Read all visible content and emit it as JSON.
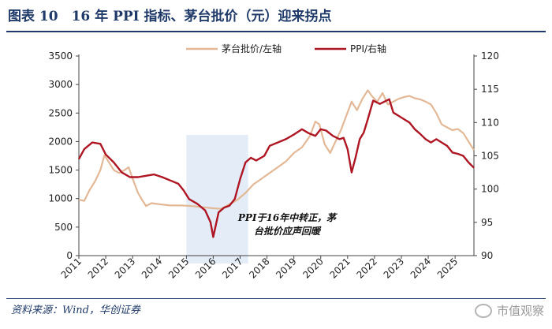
{
  "header": {
    "title": "图表 10　16 年 PPI 指标、茅台批价（元）迎来拐点"
  },
  "footer": {
    "source": "资料来源：Wind，华创证券",
    "watermark": "市值观察"
  },
  "annotation": {
    "line1": "PPI于16年中转正，茅",
    "line2": "台批价应声回暖"
  },
  "colors": {
    "moutai": "#e3b896",
    "ppi": "#ae1623",
    "highlight": "#dbe6f4",
    "axis": "#444444",
    "title": "#1f3a68"
  },
  "chart_data": {
    "type": "line",
    "title": "16 年 PPI 指标、茅台批价（元）迎来拐点",
    "xlabel": "",
    "x_ticks": [
      "2011",
      "2012",
      "2013",
      "2014",
      "2015",
      "2016",
      "2017",
      "2018",
      "2019",
      "2020",
      "2021",
      "2022",
      "2023",
      "2024",
      "2025"
    ],
    "xlim": [
      2011.0,
      2025.7
    ],
    "left_axis": {
      "label": "茅台批价/左轴",
      "ylim": [
        0,
        3500
      ],
      "ticks": [
        0,
        500,
        1000,
        1500,
        2000,
        2500,
        3000,
        3500
      ]
    },
    "right_axis": {
      "label": "PPI/右轴",
      "ylim": [
        90,
        120
      ],
      "ticks": [
        90,
        95,
        100,
        105,
        110,
        115,
        120
      ]
    },
    "highlight_range": [
      2015.0,
      2017.3
    ],
    "legend_position": "top",
    "series": [
      {
        "name": "茅台批价/左轴",
        "axis": "left",
        "points": [
          [
            2011.0,
            980
          ],
          [
            2011.2,
            960
          ],
          [
            2011.4,
            1150
          ],
          [
            2011.6,
            1300
          ],
          [
            2011.8,
            1500
          ],
          [
            2011.95,
            1760
          ],
          [
            2012.1,
            1650
          ],
          [
            2012.3,
            1500
          ],
          [
            2012.5,
            1450
          ],
          [
            2012.7,
            1500
          ],
          [
            2012.85,
            1550
          ],
          [
            2013.0,
            1350
          ],
          [
            2013.2,
            1100
          ],
          [
            2013.35,
            980
          ],
          [
            2013.5,
            870
          ],
          [
            2013.7,
            920
          ],
          [
            2014.0,
            900
          ],
          [
            2014.4,
            880
          ],
          [
            2014.8,
            880
          ],
          [
            2015.2,
            870
          ],
          [
            2015.6,
            850
          ],
          [
            2016.0,
            830
          ],
          [
            2016.3,
            820
          ],
          [
            2016.6,
            900
          ],
          [
            2016.9,
            980
          ],
          [
            2017.2,
            1100
          ],
          [
            2017.5,
            1250
          ],
          [
            2017.8,
            1350
          ],
          [
            2018.1,
            1450
          ],
          [
            2018.4,
            1550
          ],
          [
            2018.7,
            1650
          ],
          [
            2019.0,
            1800
          ],
          [
            2019.3,
            1900
          ],
          [
            2019.6,
            2100
          ],
          [
            2019.8,
            2350
          ],
          [
            2019.95,
            2300
          ],
          [
            2020.15,
            1950
          ],
          [
            2020.35,
            1800
          ],
          [
            2020.55,
            2000
          ],
          [
            2020.75,
            2200
          ],
          [
            2020.95,
            2450
          ],
          [
            2021.15,
            2700
          ],
          [
            2021.35,
            2550
          ],
          [
            2021.55,
            2750
          ],
          [
            2021.75,
            2900
          ],
          [
            2021.9,
            2800
          ],
          [
            2022.1,
            2700
          ],
          [
            2022.3,
            2850
          ],
          [
            2022.5,
            2650
          ],
          [
            2022.7,
            2700
          ],
          [
            2022.9,
            2750
          ],
          [
            2023.1,
            2780
          ],
          [
            2023.3,
            2800
          ],
          [
            2023.5,
            2760
          ],
          [
            2023.7,
            2740
          ],
          [
            2023.9,
            2700
          ],
          [
            2024.1,
            2650
          ],
          [
            2024.3,
            2500
          ],
          [
            2024.5,
            2300
          ],
          [
            2024.7,
            2250
          ],
          [
            2024.9,
            2200
          ],
          [
            2025.1,
            2220
          ],
          [
            2025.3,
            2150
          ],
          [
            2025.5,
            2000
          ],
          [
            2025.7,
            1850
          ]
        ]
      },
      {
        "name": "PPI/右轴",
        "axis": "right",
        "points": [
          [
            2011.0,
            104.5
          ],
          [
            2011.2,
            106.0
          ],
          [
            2011.5,
            107.0
          ],
          [
            2011.8,
            106.8
          ],
          [
            2012.0,
            105.2
          ],
          [
            2012.3,
            104.0
          ],
          [
            2012.6,
            102.5
          ],
          [
            2012.9,
            101.8
          ],
          [
            2013.2,
            101.8
          ],
          [
            2013.5,
            102.0
          ],
          [
            2013.8,
            102.2
          ],
          [
            2014.1,
            101.8
          ],
          [
            2014.4,
            101.3
          ],
          [
            2014.7,
            100.8
          ],
          [
            2014.9,
            99.8
          ],
          [
            2015.1,
            98.5
          ],
          [
            2015.4,
            97.8
          ],
          [
            2015.7,
            96.8
          ],
          [
            2015.9,
            95.0
          ],
          [
            2016.0,
            92.8
          ],
          [
            2016.2,
            96.5
          ],
          [
            2016.4,
            97.2
          ],
          [
            2016.6,
            97.5
          ],
          [
            2016.8,
            98.5
          ],
          [
            2017.0,
            101.5
          ],
          [
            2017.2,
            104.0
          ],
          [
            2017.4,
            104.7
          ],
          [
            2017.6,
            104.3
          ],
          [
            2017.9,
            105.0
          ],
          [
            2018.1,
            106.5
          ],
          [
            2018.4,
            107.0
          ],
          [
            2018.7,
            107.5
          ],
          [
            2019.0,
            108.2
          ],
          [
            2019.3,
            109.0
          ],
          [
            2019.55,
            108.4
          ],
          [
            2019.8,
            108.0
          ],
          [
            2020.0,
            109.0
          ],
          [
            2020.2,
            108.8
          ],
          [
            2020.45,
            108.0
          ],
          [
            2020.7,
            107.5
          ],
          [
            2020.85,
            107.7
          ],
          [
            2021.0,
            106.0
          ],
          [
            2021.15,
            102.5
          ],
          [
            2021.3,
            104.8
          ],
          [
            2021.45,
            107.5
          ],
          [
            2021.6,
            108.5
          ],
          [
            2021.75,
            110.5
          ],
          [
            2021.95,
            113.3
          ],
          [
            2022.2,
            112.8
          ],
          [
            2022.4,
            113.2
          ],
          [
            2022.55,
            113.5
          ],
          [
            2022.7,
            111.5
          ],
          [
            2022.9,
            111.0
          ],
          [
            2023.1,
            110.5
          ],
          [
            2023.3,
            110.0
          ],
          [
            2023.5,
            109.0
          ],
          [
            2023.7,
            108.3
          ],
          [
            2023.9,
            107.5
          ],
          [
            2024.1,
            107.0
          ],
          [
            2024.3,
            107.5
          ],
          [
            2024.5,
            107.0
          ],
          [
            2024.7,
            106.5
          ],
          [
            2024.9,
            105.5
          ],
          [
            2025.1,
            105.3
          ],
          [
            2025.3,
            105.0
          ],
          [
            2025.5,
            104.0
          ],
          [
            2025.7,
            103.2
          ]
        ]
      }
    ]
  }
}
